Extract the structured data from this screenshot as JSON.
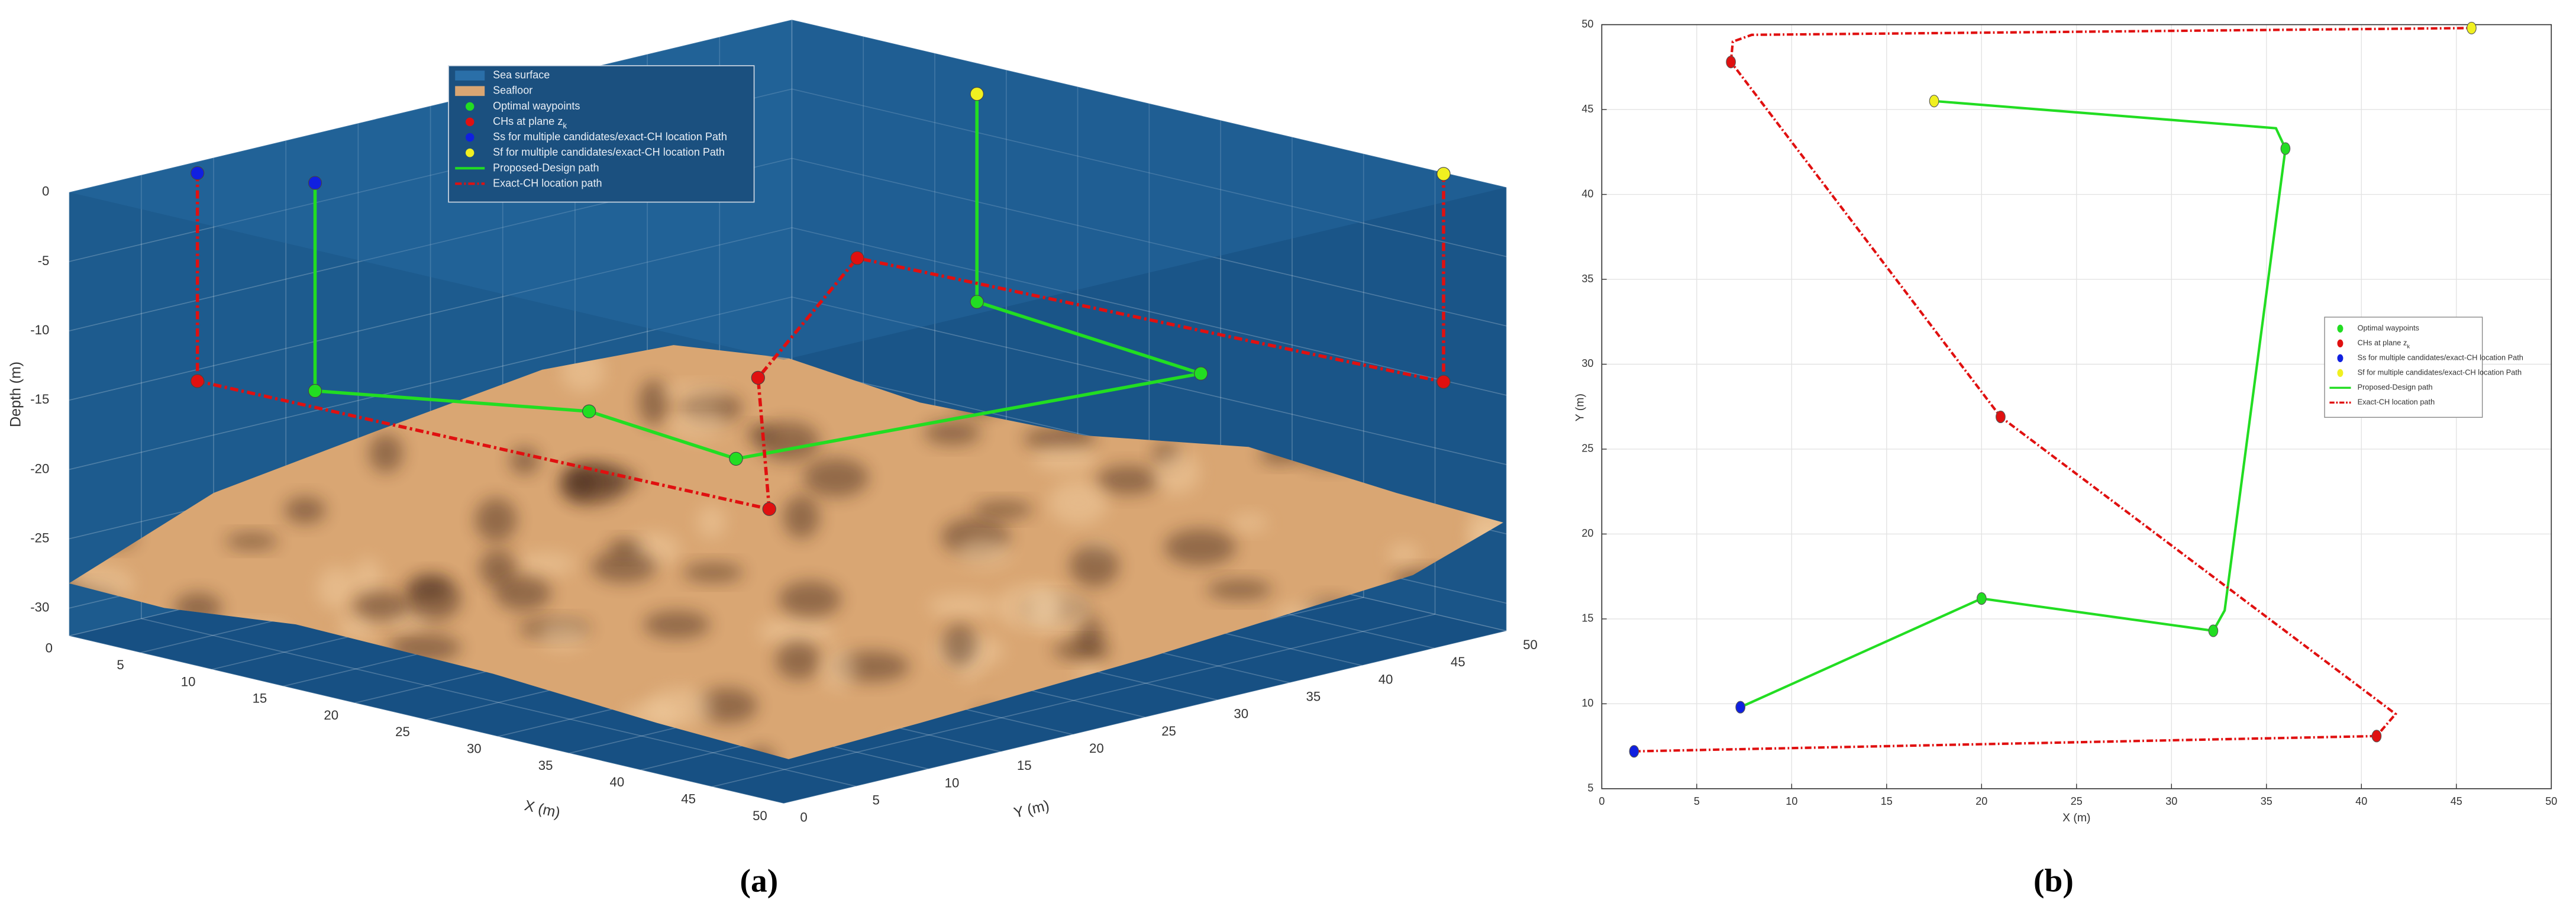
{
  "chart_data": [
    {
      "type": "line3d",
      "caption": "(a)",
      "xlabel": "X (m)",
      "ylabel": "Y (m)",
      "zlabel": "Depth (m)",
      "xlim": [
        0,
        50
      ],
      "ylim": [
        0,
        50
      ],
      "zlim": [
        -32,
        0
      ],
      "xticks": [
        0,
        5,
        10,
        15,
        20,
        25,
        30,
        35,
        40,
        45,
        50
      ],
      "yticks": [
        0,
        5,
        10,
        15,
        20,
        25,
        30,
        35,
        40,
        45,
        50
      ],
      "zticks": [
        -30,
        -25,
        -20,
        -15,
        -10,
        -5,
        0
      ],
      "grid": true,
      "surfaces": [
        {
          "name": "Sea surface",
          "color": "#2a6fa8"
        },
        {
          "name": "Seafloor",
          "color": "#d9a673"
        }
      ],
      "series": [
        {
          "name": "Optimal waypoints",
          "mode": "markers",
          "color": "#22dd22",
          "x": [
            7.3,
            20,
            32.2,
            36,
            17.5
          ],
          "y": [
            9.8,
            16.2,
            14.3,
            42.7,
            45.5
          ],
          "z": [
            -15,
            -15,
            -15,
            -15,
            -15
          ]
        },
        {
          "name": "CHs at plane z",
          "subscript": "k",
          "mode": "markers",
          "color": "#e01010",
          "x": [
            1.7,
            40.8,
            21,
            6.8,
            45.8
          ],
          "y": [
            7.2,
            8.1,
            26.9,
            47.8,
            49.8
          ],
          "z": [
            -15,
            -15,
            -15,
            -15,
            -15
          ]
        },
        {
          "name": "Ss for multiple candidates/exact-CH location Path",
          "mode": "markers",
          "color": "#1020e0",
          "x": [
            1.7,
            7.3
          ],
          "y": [
            7.2,
            9.8
          ],
          "z": [
            0,
            0
          ]
        },
        {
          "name": "Sf for multiple candidates/exact-CH location Path",
          "mode": "markers",
          "color": "#f0f020",
          "x": [
            17.5,
            45.8
          ],
          "y": [
            45.5,
            49.8
          ],
          "z": [
            0,
            0
          ]
        },
        {
          "name": "Proposed-Design path",
          "mode": "line",
          "color": "#22dd22",
          "x": [
            7.3,
            7.3,
            20,
            32.2,
            36,
            17.5,
            17.5
          ],
          "y": [
            9.8,
            9.8,
            16.2,
            14.3,
            42.7,
            45.5,
            45.5
          ],
          "z": [
            0,
            -15,
            -15,
            -15,
            -15,
            -15,
            0
          ]
        },
        {
          "name": "Exact-CH location path",
          "mode": "line",
          "dash": true,
          "color": "#e01010",
          "x": [
            1.7,
            1.7,
            40.8,
            21,
            6.8,
            45.8,
            45.8
          ],
          "y": [
            7.2,
            7.2,
            8.1,
            26.9,
            47.8,
            49.8,
            49.8
          ],
          "z": [
            0,
            -15,
            -15,
            -15,
            -15,
            -15,
            0
          ]
        }
      ]
    },
    {
      "type": "line",
      "caption": "(b)",
      "xlabel": "X (m)",
      "ylabel": "Y (m)",
      "xlim": [
        0,
        50
      ],
      "ylim": [
        5,
        50
      ],
      "xticks": [
        0,
        5,
        10,
        15,
        20,
        25,
        30,
        35,
        40,
        45,
        50
      ],
      "yticks": [
        5,
        10,
        15,
        20,
        25,
        30,
        35,
        40,
        45,
        50
      ],
      "grid": true,
      "series": [
        {
          "name": "Optimal waypoints",
          "mode": "markers",
          "color": "#22dd22",
          "x": [
            20,
            32.2,
            36
          ],
          "values": [
            16.2,
            14.3,
            42.7
          ]
        },
        {
          "name": "CHs at plane z",
          "subscript": "k",
          "mode": "markers",
          "color": "#e01010",
          "x": [
            40.8,
            21,
            6.8
          ],
          "values": [
            8.1,
            26.9,
            47.8
          ]
        },
        {
          "name": "Ss for multiple candidates/exact-CH location Path",
          "mode": "markers",
          "color": "#1020e0",
          "x": [
            7.3,
            1.7
          ],
          "values": [
            9.8,
            7.2
          ]
        },
        {
          "name": "Sf for multiple candidates/exact-CH location Path",
          "mode": "markers",
          "color": "#f0f020",
          "x": [
            17.5,
            45.8
          ],
          "values": [
            45.5,
            49.8
          ]
        },
        {
          "name": "Proposed-Design path",
          "mode": "line",
          "color": "#22dd22",
          "x": [
            7.3,
            20,
            32.2,
            32.8,
            36,
            35.5,
            17.5
          ],
          "values": [
            9.8,
            16.2,
            14.3,
            15.5,
            42.7,
            43.9,
            45.5
          ]
        },
        {
          "name": "Exact-CH location path",
          "mode": "line",
          "dash": true,
          "color": "#e01010",
          "x": [
            1.7,
            40.8,
            41.8,
            21,
            6.8,
            6.9,
            7.9,
            45.8
          ],
          "values": [
            7.2,
            8.1,
            9.4,
            26.9,
            47.8,
            49.0,
            49.4,
            49.8
          ]
        }
      ]
    }
  ]
}
